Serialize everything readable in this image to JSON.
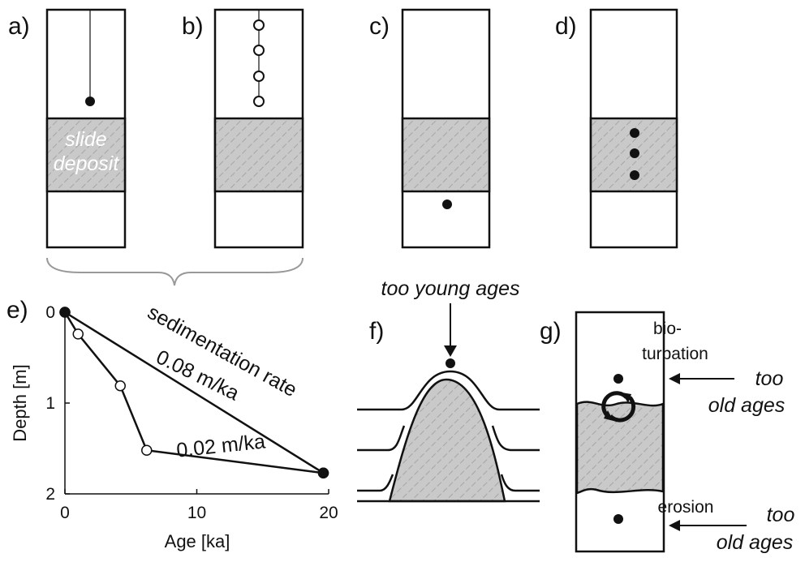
{
  "panels": {
    "a": {
      "label": "a)",
      "annotation": [
        "slide",
        "deposit"
      ]
    },
    "b": {
      "label": "b)"
    },
    "c": {
      "label": "c)"
    },
    "d": {
      "label": "d)"
    },
    "e": {
      "label": "e)",
      "type": "line",
      "xlabel": "Age [ka]",
      "ylabel": "Depth [m]",
      "xlim": [
        0,
        20
      ],
      "ylim": [
        0,
        2
      ],
      "y_inverted": true,
      "xticks": [
        0,
        10,
        20
      ],
      "yticks": [
        0,
        1,
        2
      ],
      "series": [
        {
          "color": "#111111",
          "marker": "open",
          "x": [
            0,
            1,
            4.2,
            6.2,
            19.6
          ],
          "values": [
            0,
            0.24,
            0.81,
            1.52,
            1.77
          ]
        },
        {
          "color": "#111111",
          "marker": "filled",
          "x": [
            0,
            19.6
          ],
          "values": [
            0,
            1.77
          ]
        }
      ],
      "annotations": [
        "sedimentation rate",
        "0.08 m/ka",
        "0.02 m/ka"
      ]
    },
    "f": {
      "label": "f)",
      "annotation": "too young ages"
    },
    "g": {
      "label": "g)",
      "bioturbation": [
        "bio-",
        "turbation"
      ],
      "upper_note": [
        "too",
        "old ages"
      ],
      "erosion": "erosion",
      "lower_note": [
        "too",
        "old ages"
      ]
    }
  }
}
